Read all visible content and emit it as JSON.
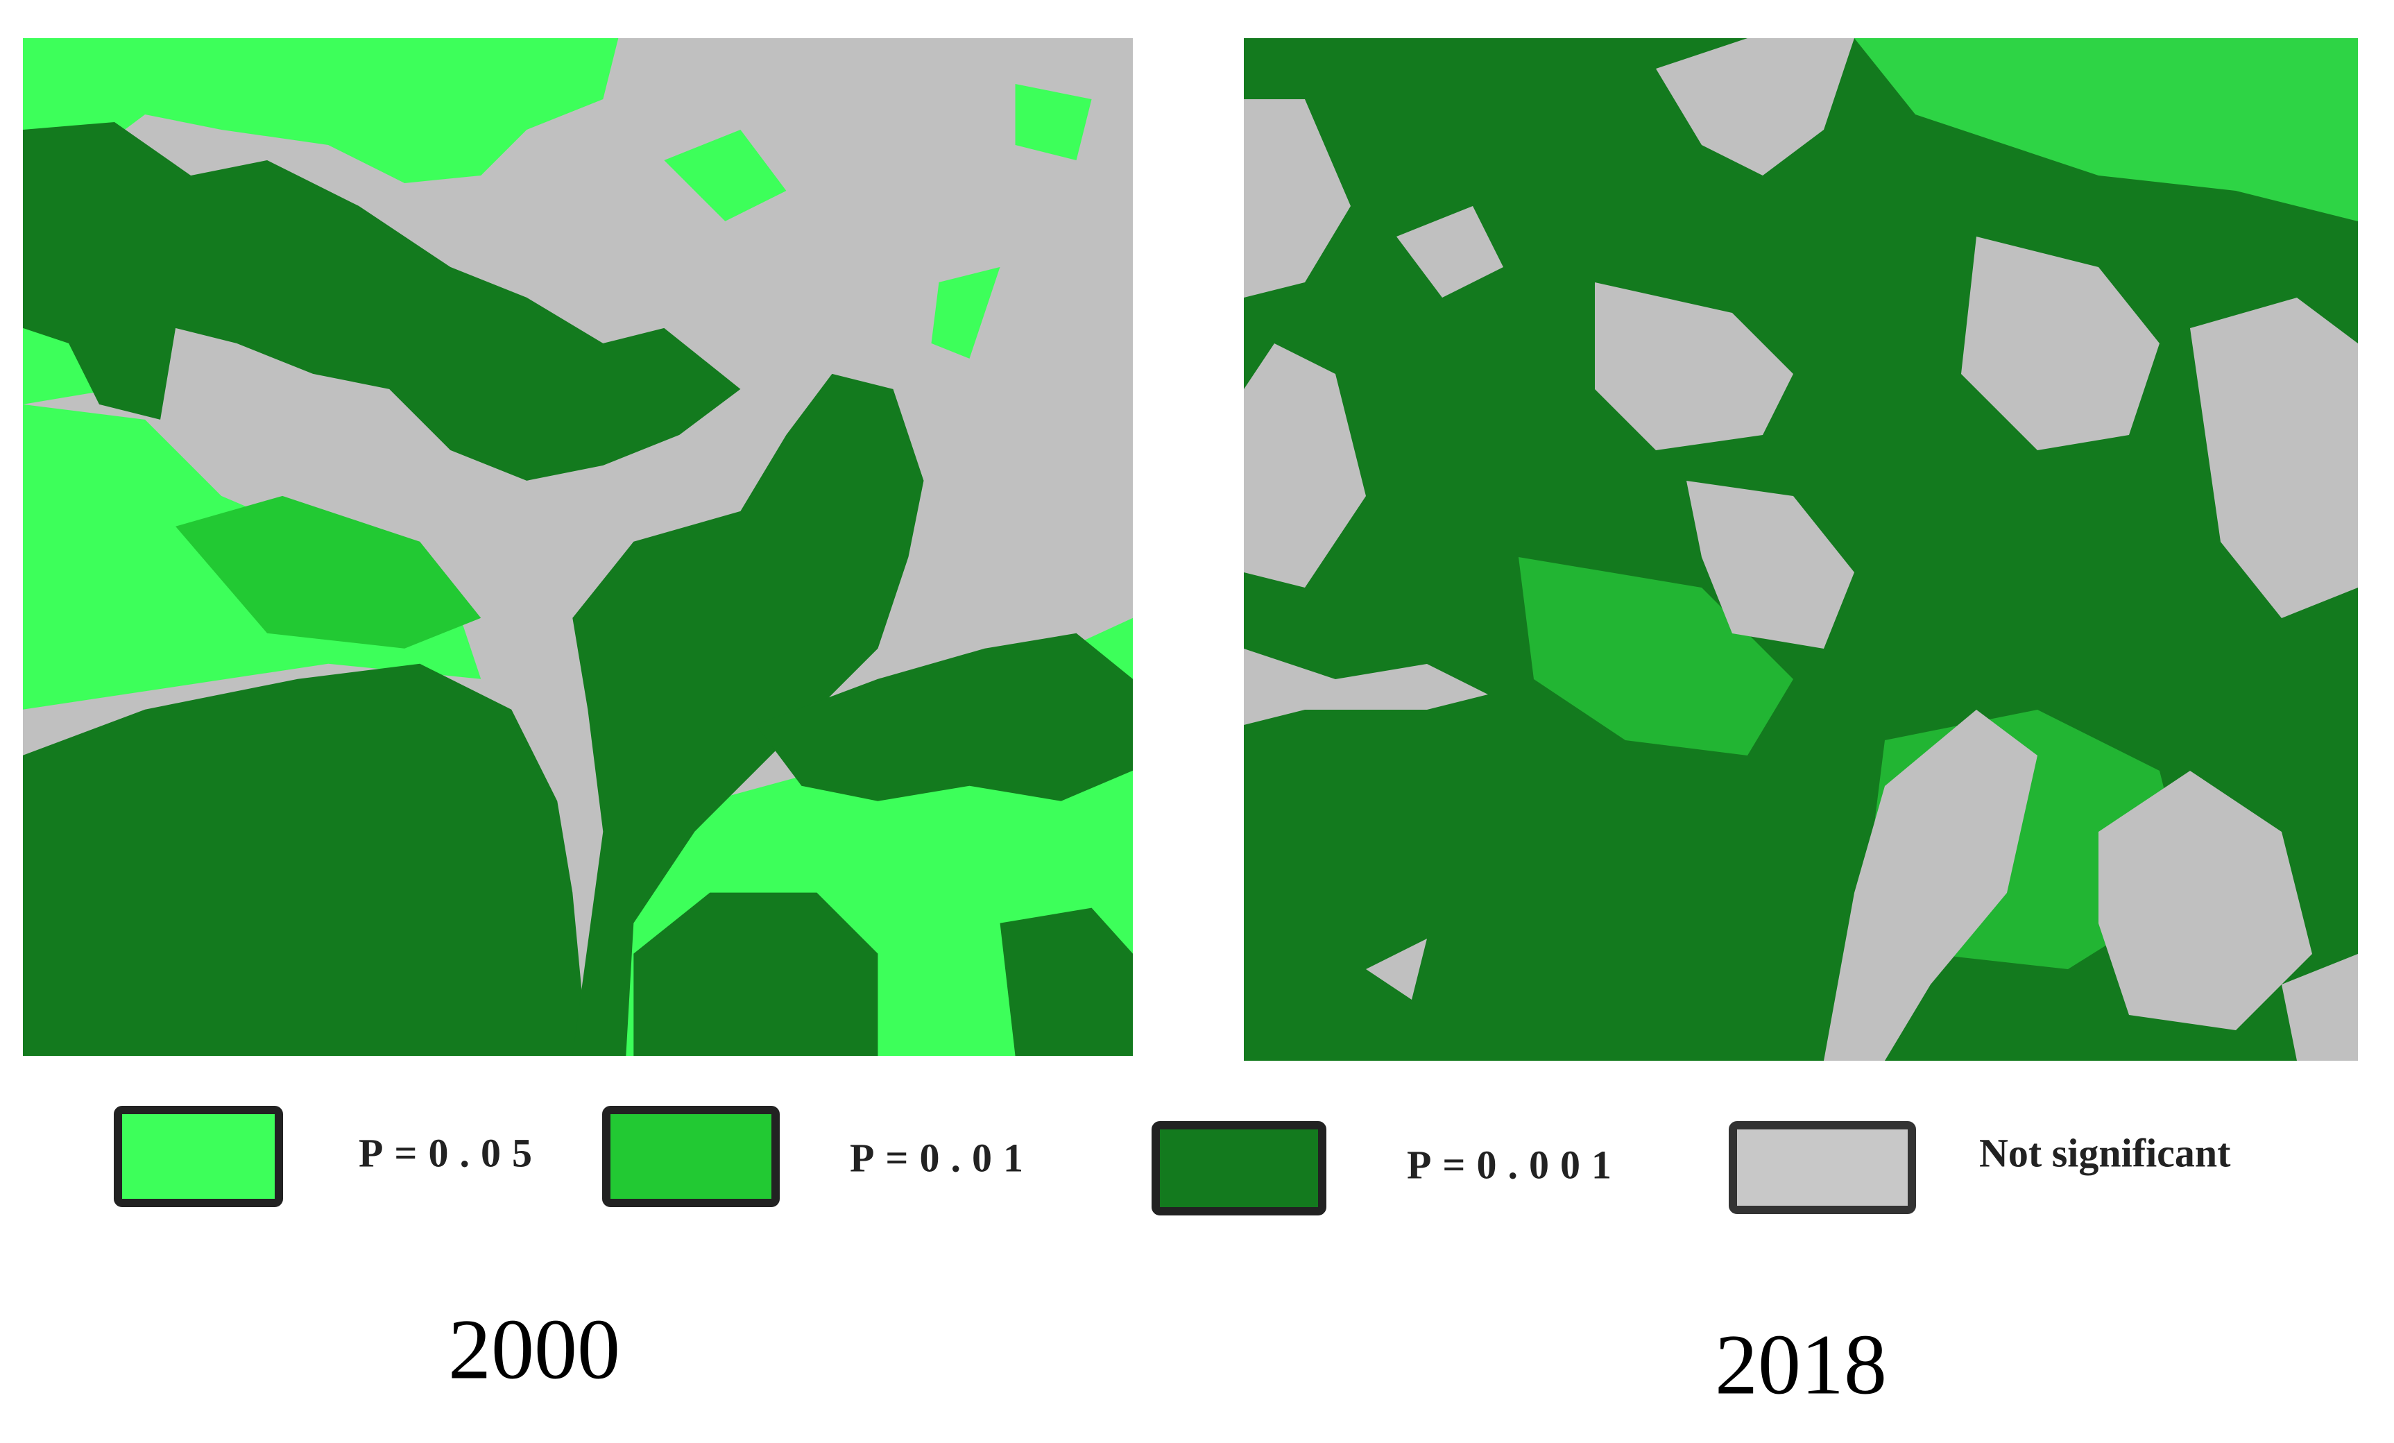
{
  "legend": [
    {
      "label": "P=0.05"
    },
    {
      "label": "P=0.01"
    },
    {
      "label": "P=0.001"
    },
    {
      "label": "Not significant"
    }
  ],
  "panels": [
    {
      "label": "2000"
    },
    {
      "label": "2018"
    }
  ]
}
